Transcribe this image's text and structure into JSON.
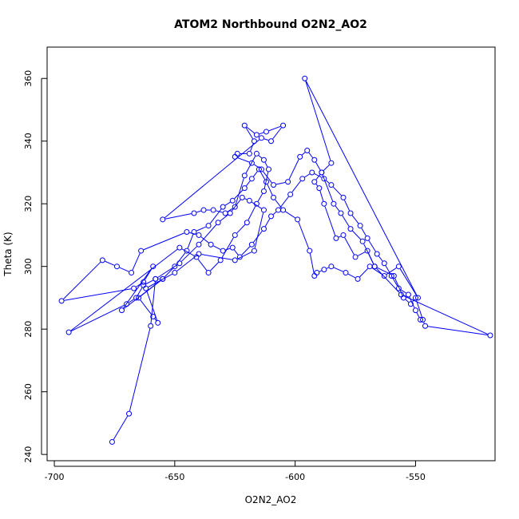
{
  "chart_data": {
    "type": "line",
    "title": "ATOM2 Northbound O2N2_AO2",
    "xlabel": "O2N2_AO2",
    "ylabel": "Theta (K)",
    "xlim": [
      -703,
      -517
    ],
    "ylim": [
      238,
      370
    ],
    "x_ticks": [
      -700,
      -650,
      -600,
      -550
    ],
    "y_ticks": [
      240,
      260,
      280,
      300,
      320,
      340,
      360
    ],
    "grid": false,
    "series_color": "#0000ff",
    "marker": "open-circle",
    "series": [
      {
        "points": [
          [
            -676,
            244
          ],
          [
            -669,
            253
          ],
          [
            -660,
            281
          ],
          [
            -658,
            296
          ],
          [
            -655,
            296
          ],
          [
            -665,
            290
          ],
          [
            -659,
            284
          ],
          [
            -657,
            282
          ],
          [
            -662,
            293
          ],
          [
            -650,
            298
          ],
          [
            -640,
            304
          ],
          [
            -625,
            302
          ],
          [
            -617,
            305
          ],
          [
            -613,
            318
          ],
          [
            -619,
            321
          ],
          [
            -622,
            322
          ],
          [
            -627,
            317
          ],
          [
            -632,
            314
          ],
          [
            -640,
            307
          ],
          [
            -648,
            301
          ],
          [
            -658,
            296
          ],
          [
            -663,
            294
          ],
          [
            -666,
            290
          ],
          [
            -670,
            288
          ],
          [
            -694,
            279
          ],
          [
            -648,
            306
          ],
          [
            -641,
            303
          ],
          [
            -636,
            298
          ],
          [
            -631,
            302
          ],
          [
            -625,
            310
          ],
          [
            -620,
            314
          ],
          [
            -616,
            320
          ],
          [
            -613,
            324
          ],
          [
            -611,
            331
          ],
          [
            -613,
            334
          ],
          [
            -616,
            336
          ],
          [
            -621,
            329
          ],
          [
            -625,
            319
          ],
          [
            -629,
            317
          ],
          [
            -634,
            318
          ],
          [
            -638,
            318
          ],
          [
            -642,
            317
          ],
          [
            -655,
            315
          ],
          [
            -614,
            341
          ],
          [
            -610,
            340
          ],
          [
            -605,
            345
          ],
          [
            -612,
            343
          ],
          [
            -616,
            342
          ],
          [
            -621,
            345
          ],
          [
            -617,
            340
          ],
          [
            -619,
            336
          ],
          [
            -624,
            336
          ],
          [
            -625,
            335
          ],
          [
            -618,
            333
          ],
          [
            -614,
            331
          ],
          [
            -609,
            326
          ],
          [
            -603,
            327
          ],
          [
            -598,
            335
          ],
          [
            -595,
            337
          ],
          [
            -592,
            334
          ],
          [
            -589,
            330
          ],
          [
            -584,
            320
          ],
          [
            -581,
            317
          ],
          [
            -577,
            312
          ],
          [
            -572,
            308
          ],
          [
            -567,
            300
          ],
          [
            -559,
            297
          ],
          [
            -555,
            290
          ],
          [
            -552,
            288
          ],
          [
            -550,
            290
          ],
          [
            -547,
            283
          ],
          [
            -546,
            281
          ],
          [
            -519,
            278
          ],
          [
            -556,
            291
          ],
          [
            -567,
            300
          ],
          [
            -570,
            305
          ],
          [
            -575,
            303
          ],
          [
            -580,
            310
          ],
          [
            -583,
            309
          ],
          [
            -588,
            320
          ],
          [
            -590,
            325
          ],
          [
            -592,
            327
          ],
          [
            -589,
            330
          ],
          [
            -585,
            333
          ],
          [
            -596,
            360
          ],
          [
            -549,
            290
          ],
          [
            -557,
            300
          ],
          [
            -563,
            297
          ],
          [
            -569,
            300
          ],
          [
            -574,
            296
          ],
          [
            -579,
            298
          ],
          [
            -585,
            300
          ],
          [
            -588,
            299
          ],
          [
            -591,
            298
          ],
          [
            -592,
            297
          ],
          [
            -594,
            305
          ],
          [
            -599,
            315
          ],
          [
            -605,
            318
          ],
          [
            -609,
            322
          ],
          [
            -612,
            327
          ],
          [
            -615,
            331
          ],
          [
            -618,
            328
          ],
          [
            -621,
            325
          ],
          [
            -626,
            321
          ],
          [
            -630,
            319
          ],
          [
            -636,
            313
          ],
          [
            -642,
            311
          ],
          [
            -645,
            305
          ],
          [
            -650,
            300
          ],
          [
            -655,
            296
          ],
          [
            -672,
            286
          ],
          [
            -659,
            300
          ],
          [
            -663,
            295
          ],
          [
            -667,
            293
          ],
          [
            -697,
            289
          ],
          [
            -680,
            302
          ],
          [
            -674,
            300
          ],
          [
            -668,
            298
          ],
          [
            -664,
            305
          ],
          [
            -645,
            311
          ],
          [
            -640,
            310
          ],
          [
            -635,
            307
          ],
          [
            -630,
            305
          ],
          [
            -626,
            306
          ],
          [
            -623,
            303
          ],
          [
            -618,
            307
          ],
          [
            -613,
            312
          ],
          [
            -610,
            316
          ],
          [
            -607,
            318
          ],
          [
            -602,
            323
          ],
          [
            -597,
            328
          ],
          [
            -593,
            330
          ],
          [
            -588,
            328
          ],
          [
            -585,
            326
          ],
          [
            -580,
            322
          ],
          [
            -577,
            317
          ],
          [
            -573,
            313
          ],
          [
            -570,
            309
          ],
          [
            -566,
            304
          ],
          [
            -563,
            301
          ],
          [
            -560,
            297
          ],
          [
            -557,
            293
          ],
          [
            -553,
            291
          ],
          [
            -550,
            286
          ],
          [
            -548,
            283
          ]
        ]
      }
    ]
  }
}
